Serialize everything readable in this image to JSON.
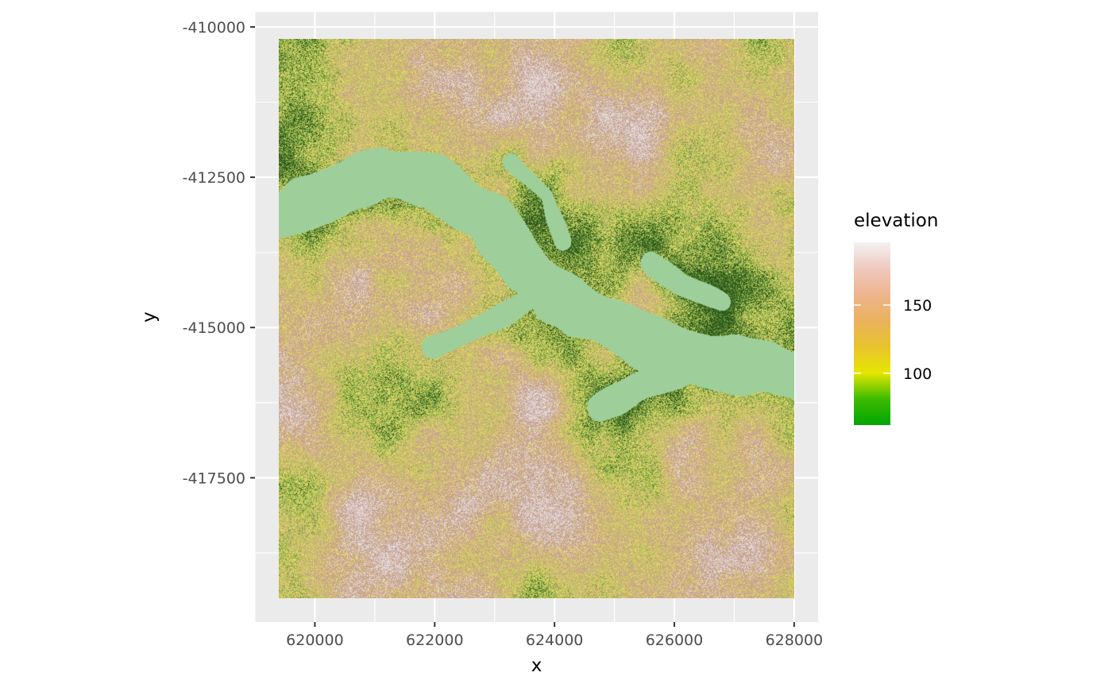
{
  "chart_data": {
    "type": "heatmap",
    "xlabel": "x",
    "ylabel": "y",
    "xlim": [
      619000,
      628400
    ],
    "ylim": [
      -419900,
      -409750
    ],
    "raster_extent": {
      "xmin": 619400,
      "xmax": 628000,
      "ymin": -419500,
      "ymax": -410200
    },
    "x_ticks": [
      620000,
      622000,
      624000,
      626000,
      628000
    ],
    "x_tick_labels": [
      "620000",
      "622000",
      "624000",
      "626000",
      "628000"
    ],
    "y_ticks": [
      -410000,
      -412500,
      -415000,
      -417500
    ],
    "y_tick_labels": [
      "-410000",
      "-412500",
      "-415000",
      "-417500"
    ],
    "grid": true,
    "legend": {
      "title": "elevation",
      "placement": "right",
      "range": [
        62,
        196
      ],
      "breaks": [
        100,
        150
      ],
      "break_labels": [
        "100",
        "150"
      ],
      "colors": [
        "#00A600",
        "#3EBB00",
        "#E6E600",
        "#E8C32E",
        "#EBB25E",
        "#EDB48E",
        "#F0C9C0",
        "#F2F2F2"
      ]
    },
    "valley_level": 65,
    "colors": {
      "panel_background": "#EBEBEB",
      "grid_major": "#FFFFFF",
      "valley": "#9ECE9A",
      "dark_forest": "#2F5A1C",
      "mid_forest": "#6E9A3E",
      "light_forest": "#B9C95C",
      "yellow": "#E3D36A",
      "tan": "#C8A67B",
      "pink": "#C9A4A0",
      "peak": "#E2D8D8"
    }
  }
}
